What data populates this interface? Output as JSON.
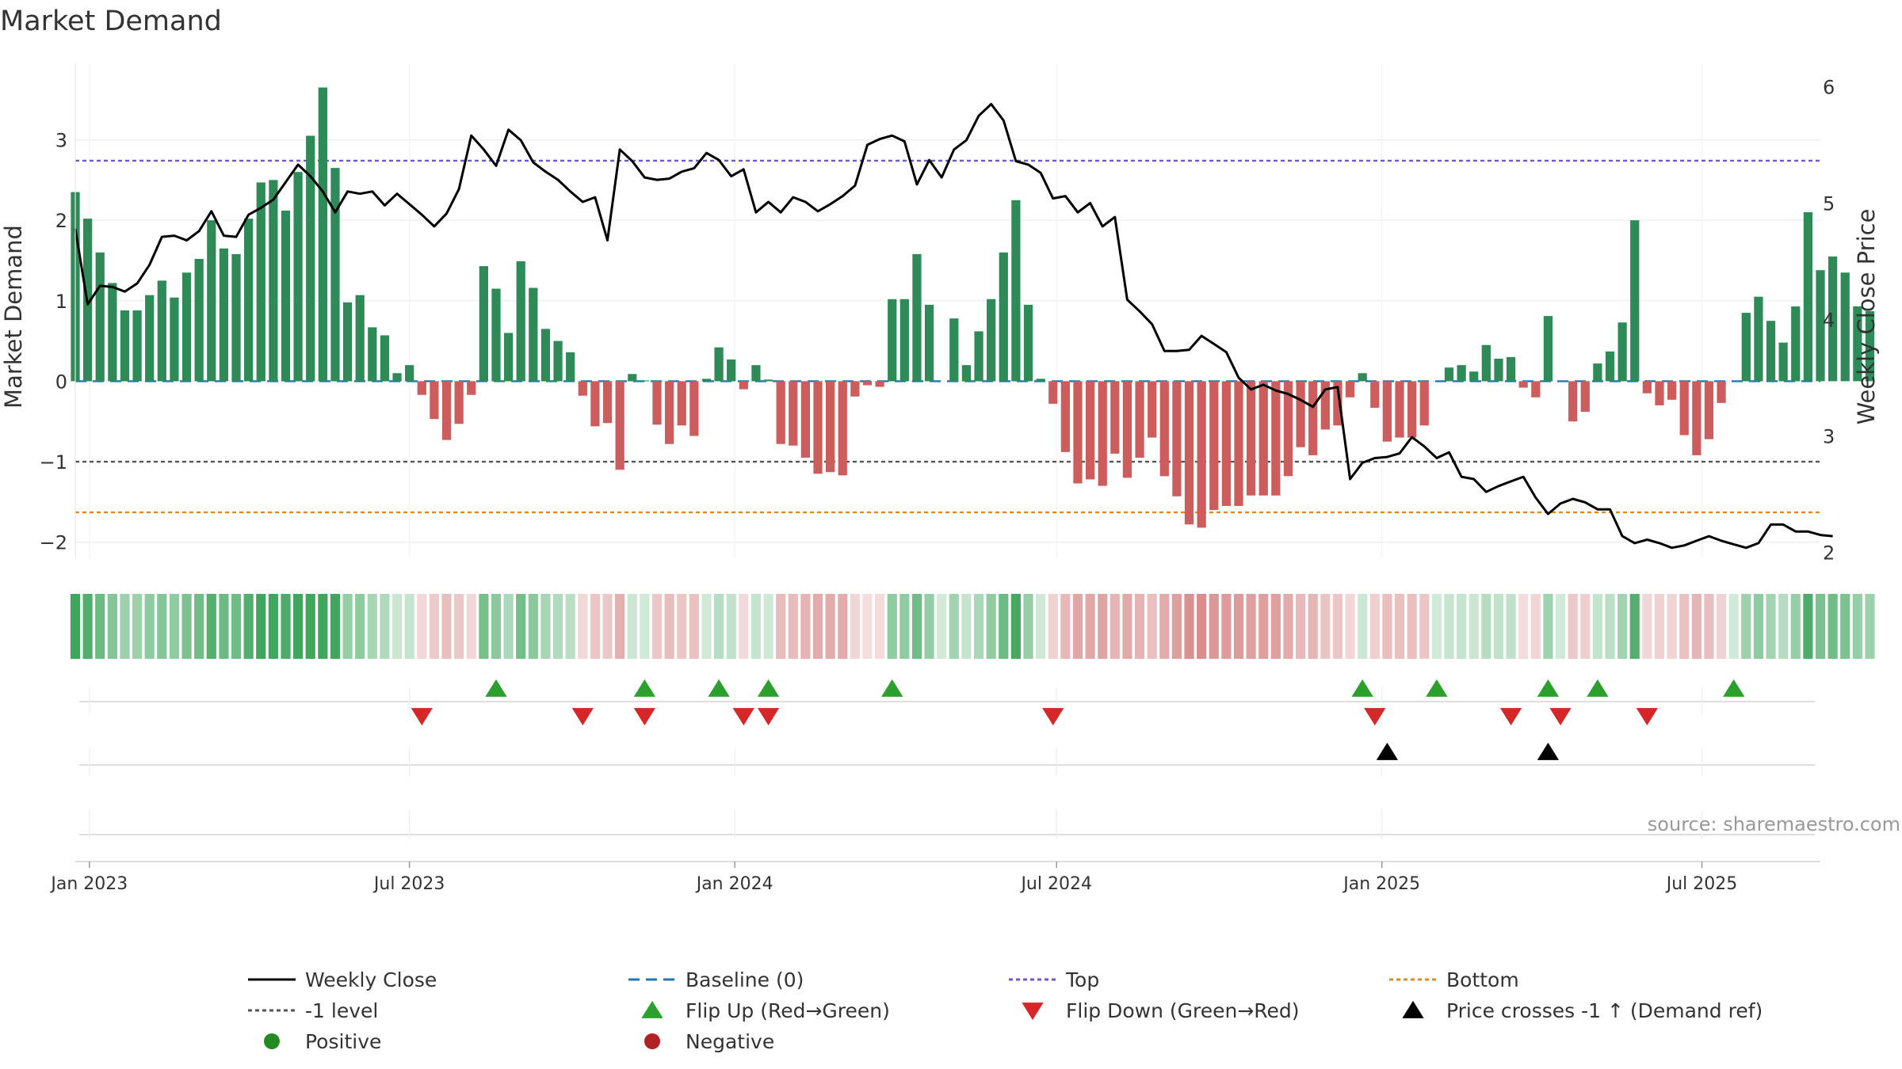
{
  "chart_data": {
    "type": "bar",
    "title": "Market Demand",
    "ylabel": "Market Demand",
    "y2label": "Weekly Close Price",
    "ylim": [
      -2.2,
      3.95
    ],
    "y2lim": [
      1.95,
      6.2
    ],
    "yticks": [
      -2,
      -1,
      0,
      1,
      2,
      3
    ],
    "ytick_labels": [
      "−2",
      "−1",
      "0",
      "1",
      "2",
      "3"
    ],
    "y2ticks": [
      2,
      3,
      4,
      5,
      6
    ],
    "y2tick_labels": [
      "2",
      "3",
      "4",
      "5",
      "6"
    ],
    "x_start": "2022-12-24",
    "x_end": "2025-09-06",
    "xticks": [
      "2023-01-01",
      "2023-07-01",
      "2024-01-01",
      "2024-07-01",
      "2025-01-01",
      "2025-07-01"
    ],
    "xtick_labels": [
      "Jan 2023",
      "Jul 2023",
      "Jan 2024",
      "Jul 2024",
      "Jan 2025",
      "Jul 2025"
    ],
    "weeks_start": "2022-12-24",
    "week_count": 145,
    "demand": [
      2.35,
      2.02,
      1.6,
      1.22,
      0.88,
      0.88,
      1.07,
      1.25,
      1.04,
      1.35,
      1.52,
      2.0,
      1.65,
      1.58,
      2.02,
      2.47,
      2.5,
      2.12,
      2.6,
      3.05,
      3.65,
      2.65,
      0.98,
      1.07,
      0.67,
      0.57,
      0.1,
      0.2,
      -0.17,
      -0.47,
      -0.73,
      -0.53,
      -0.17,
      1.43,
      1.15,
      0.6,
      1.49,
      1.16,
      0.65,
      0.5,
      0.36,
      -0.18,
      -0.56,
      -0.52,
      -1.1,
      0.09,
      0.01,
      -0.54,
      -0.78,
      -0.55,
      -0.68,
      0.03,
      0.42,
      0.27,
      -0.1,
      0.2,
      0.02,
      -0.78,
      -0.8,
      -0.95,
      -1.15,
      -1.13,
      -1.17,
      -0.19,
      -0.05,
      -0.07,
      1.02,
      1.02,
      1.58,
      0.95,
      0.0,
      0.78,
      0.2,
      0.62,
      1.02,
      1.6,
      2.25,
      0.95,
      0.03,
      -0.28,
      -0.88,
      -1.27,
      -1.22,
      -1.3,
      -0.9,
      -1.2,
      -0.95,
      -0.7,
      -1.18,
      -1.43,
      -1.78,
      -1.82,
      -1.6,
      -1.55,
      -1.55,
      -1.42,
      -1.42,
      -1.42,
      -1.18,
      -0.82,
      -0.92,
      -0.6,
      -0.55,
      -0.2,
      0.1,
      -0.33,
      -0.75,
      -0.7,
      -0.7,
      -0.55,
      0.0,
      0.17,
      0.2,
      0.12,
      0.45,
      0.28,
      0.3,
      -0.08,
      -0.2,
      0.81,
      0.0,
      -0.5,
      -0.38,
      0.22,
      0.37,
      0.73,
      2.0,
      -0.15,
      -0.3,
      -0.23,
      -0.67,
      -0.92,
      -0.72,
      -0.27,
      0.0,
      0.85,
      1.05,
      0.75,
      0.48,
      0.93,
      2.1,
      1.38,
      1.55,
      1.35,
      0.93,
      0.87
    ],
    "weekly_close": [
      4.78,
      4.13,
      4.29,
      4.28,
      4.24,
      4.31,
      4.47,
      4.71,
      4.72,
      4.68,
      4.76,
      4.93,
      4.72,
      4.71,
      4.9,
      4.96,
      5.03,
      5.18,
      5.33,
      5.23,
      5.1,
      4.92,
      5.1,
      5.08,
      5.1,
      4.98,
      5.08,
      4.99,
      4.9,
      4.8,
      4.91,
      5.12,
      5.58,
      5.46,
      5.32,
      5.63,
      5.54,
      5.35,
      5.27,
      5.2,
      5.1,
      5.01,
      5.05,
      4.68,
      5.46,
      5.36,
      5.22,
      5.2,
      5.21,
      5.27,
      5.3,
      5.43,
      5.37,
      5.23,
      5.29,
      4.92,
      5.01,
      4.92,
      5.05,
      5.01,
      4.93,
      4.99,
      5.06,
      5.15,
      5.5,
      5.55,
      5.58,
      5.53,
      5.16,
      5.37,
      5.22,
      5.46,
      5.54,
      5.75,
      5.85,
      5.71,
      5.36,
      5.33,
      5.26,
      5.04,
      5.06,
      4.92,
      5.0,
      4.8,
      4.88,
      4.17,
      4.07,
      3.96,
      3.73,
      3.73,
      3.74,
      3.86,
      3.79,
      3.72,
      3.5,
      3.4,
      3.44,
      3.39,
      3.36,
      3.31,
      3.25,
      3.4,
      3.42,
      2.63,
      2.77,
      2.81,
      2.82,
      2.85,
      2.99,
      2.91,
      2.81,
      2.86,
      2.65,
      2.63,
      2.52,
      2.57,
      2.61,
      2.65,
      2.47,
      2.33,
      2.42,
      2.46,
      2.43,
      2.37,
      2.37,
      2.14,
      2.08,
      2.11,
      2.08,
      2.04,
      2.06,
      2.1,
      2.14,
      2.1,
      2.07,
      2.04,
      2.08,
      2.24,
      2.24,
      2.18,
      2.18,
      2.15,
      2.14
    ],
    "reference_lines": [
      {
        "name": "Baseline (0)",
        "value": 0,
        "color": "#1f77b4",
        "style": "dashed"
      },
      {
        "name": "Top",
        "value": 2.74,
        "color": "#6a5acd",
        "style": "dotted"
      },
      {
        "name": "Bottom",
        "value": -1.63,
        "color": "#e08a1e",
        "style": "dotted"
      },
      {
        "name": "-1 level",
        "value": -1,
        "color": "#555555",
        "style": "dotted"
      }
    ],
    "flip_up_weeks": [
      34,
      46,
      52,
      56,
      66,
      104,
      110,
      119,
      123,
      134
    ],
    "flip_down_weeks": [
      28,
      41,
      46,
      54,
      56,
      79,
      105,
      116,
      120,
      127
    ],
    "price_cross_weeks": [
      106,
      119
    ],
    "legend": [
      {
        "label": "Weekly Close",
        "marker": "line",
        "color": "#000000"
      },
      {
        "label": "Baseline (0)",
        "marker": "dashed",
        "color": "#1f77b4"
      },
      {
        "label": "Top",
        "marker": "dotted",
        "color": "#6a5acd"
      },
      {
        "label": "Bottom",
        "marker": "dotted",
        "color": "#e08a1e"
      },
      {
        "label": "-1 level",
        "marker": "dotted",
        "color": "#555555"
      },
      {
        "label": "Flip Up (Red→Green)",
        "marker": "triangle-up",
        "color": "#2ca02c"
      },
      {
        "label": "Flip Down (Green→Red)",
        "marker": "triangle-down",
        "color": "#d62728"
      },
      {
        "label": "Price crosses -1 ↑ (Demand ref)",
        "marker": "triangle-up",
        "color": "#000000"
      },
      {
        "label": "Positive",
        "marker": "circle",
        "color": "#228b22"
      },
      {
        "label": "Negative",
        "marker": "circle",
        "color": "#b22222"
      }
    ],
    "source": "source: sharemaestro.com"
  },
  "colors": {
    "positive_bar": "#2e8b57",
    "negative_bar": "#cd5c5c",
    "heat_positive": "#2e9e4f",
    "heat_negative": "#cd6b6b",
    "flip_up": "#2ca02c",
    "flip_down": "#d62728",
    "price_line": "#000000"
  }
}
